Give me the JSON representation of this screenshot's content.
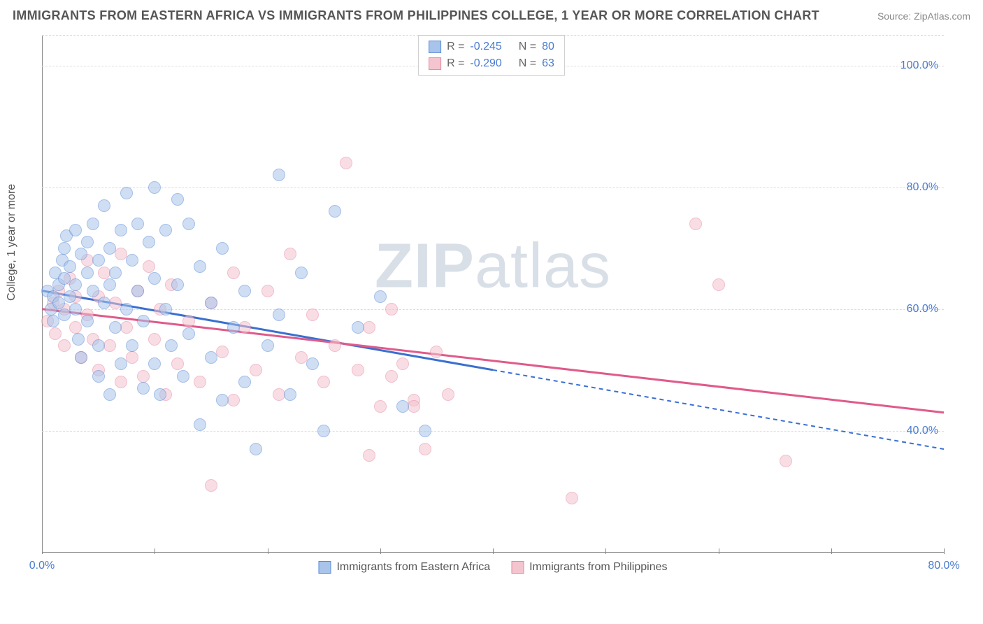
{
  "header": {
    "title": "IMMIGRANTS FROM EASTERN AFRICA VS IMMIGRANTS FROM PHILIPPINES COLLEGE, 1 YEAR OR MORE CORRELATION CHART",
    "source": "Source: ZipAtlas.com"
  },
  "watermark": {
    "zip": "ZIP",
    "atlas": "atlas"
  },
  "chart": {
    "type": "scatter",
    "y_label": "College, 1 year or more",
    "background_color": "#ffffff",
    "grid_color": "#dddddd",
    "tick_color": "#4a7bd0",
    "xlim": [
      0,
      80
    ],
    "ylim": [
      20,
      105
    ],
    "y_ticks": [
      40,
      60,
      80,
      100
    ],
    "y_tick_labels": [
      "40.0%",
      "60.0%",
      "80.0%",
      "100.0%"
    ],
    "x_ticks": [
      0,
      10,
      20,
      30,
      40,
      50,
      60,
      70,
      80
    ],
    "x_tick_labels_shown": {
      "0": "0.0%",
      "80": "80.0%"
    },
    "marker_radius": 9,
    "marker_opacity": 0.55,
    "series": {
      "eastern_africa": {
        "label": "Immigrants from Eastern Africa",
        "fill": "#a8c4ea",
        "stroke": "#5a8bd8",
        "r_value": "-0.245",
        "n_value": "80",
        "trend": {
          "x1": 0,
          "y1": 63,
          "x2": 40,
          "y2": 50,
          "extend_x2": 80,
          "extend_y2": 37,
          "solid_color": "#3a6fd0",
          "width": 3
        },
        "points": [
          [
            0.5,
            63
          ],
          [
            0.8,
            60
          ],
          [
            1,
            58
          ],
          [
            1,
            62
          ],
          [
            1.2,
            66
          ],
          [
            1.5,
            61
          ],
          [
            1.5,
            64
          ],
          [
            1.8,
            68
          ],
          [
            2,
            70
          ],
          [
            2,
            65
          ],
          [
            2,
            59
          ],
          [
            2.2,
            72
          ],
          [
            2.5,
            62
          ],
          [
            2.5,
            67
          ],
          [
            3,
            73
          ],
          [
            3,
            60
          ],
          [
            3,
            64
          ],
          [
            3.2,
            55
          ],
          [
            3.5,
            69
          ],
          [
            3.5,
            52
          ],
          [
            4,
            66
          ],
          [
            4,
            71
          ],
          [
            4,
            58
          ],
          [
            4.5,
            74
          ],
          [
            4.5,
            63
          ],
          [
            5,
            68
          ],
          [
            5,
            49
          ],
          [
            5,
            54
          ],
          [
            5.5,
            77
          ],
          [
            5.5,
            61
          ],
          [
            6,
            64
          ],
          [
            6,
            70
          ],
          [
            6,
            46
          ],
          [
            6.5,
            57
          ],
          [
            6.5,
            66
          ],
          [
            7,
            73
          ],
          [
            7,
            51
          ],
          [
            7.5,
            60
          ],
          [
            7.5,
            79
          ],
          [
            8,
            68
          ],
          [
            8,
            54
          ],
          [
            8.5,
            63
          ],
          [
            8.5,
            74
          ],
          [
            9,
            47
          ],
          [
            9,
            58
          ],
          [
            9.5,
            71
          ],
          [
            10,
            65
          ],
          [
            10,
            80
          ],
          [
            10,
            51
          ],
          [
            10.5,
            46
          ],
          [
            11,
            60
          ],
          [
            11,
            73
          ],
          [
            11.5,
            54
          ],
          [
            12,
            78
          ],
          [
            12,
            64
          ],
          [
            12.5,
            49
          ],
          [
            13,
            56
          ],
          [
            13,
            74
          ],
          [
            14,
            67
          ],
          [
            14,
            41
          ],
          [
            15,
            52
          ],
          [
            15,
            61
          ],
          [
            16,
            70
          ],
          [
            16,
            45
          ],
          [
            17,
            57
          ],
          [
            18,
            48
          ],
          [
            18,
            63
          ],
          [
            19,
            37
          ],
          [
            20,
            54
          ],
          [
            21,
            59
          ],
          [
            21,
            82
          ],
          [
            22,
            46
          ],
          [
            23,
            66
          ],
          [
            24,
            51
          ],
          [
            25,
            40
          ],
          [
            26,
            76
          ],
          [
            28,
            57
          ],
          [
            30,
            62
          ],
          [
            32,
            44
          ],
          [
            34,
            40
          ]
        ]
      },
      "philippines": {
        "label": "Immigrants from Philippines",
        "fill": "#f4c4cf",
        "stroke": "#e78aa3",
        "r_value": "-0.290",
        "n_value": "63",
        "trend": {
          "x1": 0,
          "y1": 60,
          "x2": 80,
          "y2": 43,
          "solid_color": "#e05a8a",
          "width": 3
        },
        "points": [
          [
            0.5,
            58
          ],
          [
            1,
            61
          ],
          [
            1.2,
            56
          ],
          [
            1.5,
            63
          ],
          [
            2,
            60
          ],
          [
            2,
            54
          ],
          [
            2.5,
            65
          ],
          [
            3,
            57
          ],
          [
            3,
            62
          ],
          [
            3.5,
            52
          ],
          [
            4,
            59
          ],
          [
            4,
            68
          ],
          [
            4.5,
            55
          ],
          [
            5,
            62
          ],
          [
            5,
            50
          ],
          [
            5.5,
            66
          ],
          [
            6,
            54
          ],
          [
            6.5,
            61
          ],
          [
            7,
            48
          ],
          [
            7,
            69
          ],
          [
            7.5,
            57
          ],
          [
            8,
            52
          ],
          [
            8.5,
            63
          ],
          [
            9,
            49
          ],
          [
            9.5,
            67
          ],
          [
            10,
            55
          ],
          [
            10.5,
            60
          ],
          [
            11,
            46
          ],
          [
            11.5,
            64
          ],
          [
            12,
            51
          ],
          [
            13,
            58
          ],
          [
            14,
            48
          ],
          [
            15,
            61
          ],
          [
            15,
            31
          ],
          [
            16,
            53
          ],
          [
            17,
            66
          ],
          [
            17,
            45
          ],
          [
            18,
            57
          ],
          [
            19,
            50
          ],
          [
            20,
            63
          ],
          [
            21,
            46
          ],
          [
            22,
            69
          ],
          [
            23,
            52
          ],
          [
            24,
            59
          ],
          [
            25,
            48
          ],
          [
            26,
            54
          ],
          [
            27,
            84
          ],
          [
            28,
            50
          ],
          [
            29,
            57
          ],
          [
            30,
            44
          ],
          [
            31,
            60
          ],
          [
            32,
            51
          ],
          [
            33,
            45
          ],
          [
            34,
            37
          ],
          [
            35,
            53
          ],
          [
            36,
            46
          ],
          [
            47,
            29
          ],
          [
            58,
            74
          ],
          [
            60,
            64
          ],
          [
            66,
            35
          ],
          [
            31,
            49
          ],
          [
            33,
            44
          ],
          [
            29,
            36
          ]
        ]
      }
    },
    "legend_top_labels": {
      "r": "R =",
      "n": "N ="
    }
  }
}
